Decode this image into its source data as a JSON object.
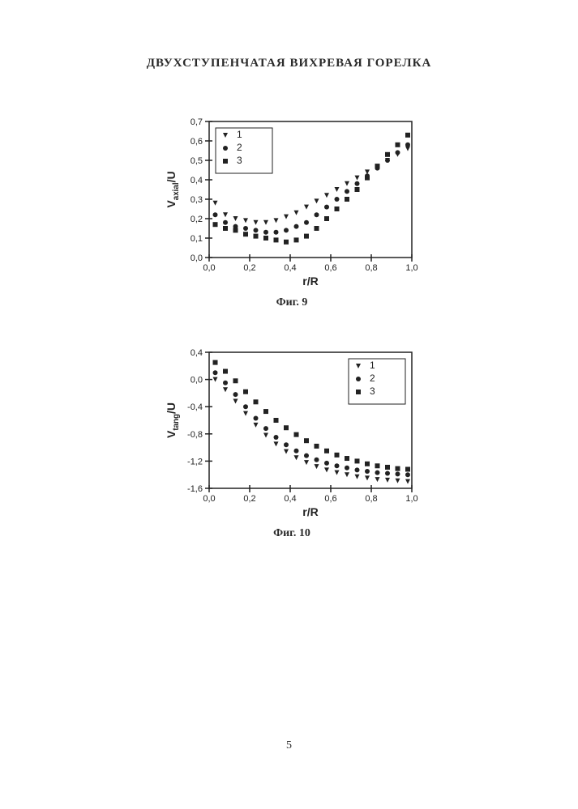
{
  "page": {
    "title": "ДВУХСТУПЕНЧАТАЯ ВИХРЕВАЯ  ГОРЕЛКА",
    "number": "5",
    "title_fontsize": 15,
    "pagenum_fontsize": 14
  },
  "fig9": {
    "caption": "Фиг. 9",
    "caption_fontsize": 14,
    "type": "scatter",
    "xlabel": "r/R",
    "ylabel": "V_axial/U",
    "label_fontsize": 14,
    "tick_fontsize": 11,
    "background_color": "#ffffff",
    "axis_color": "#222222",
    "xlim": [
      0.0,
      1.0
    ],
    "ylim": [
      0.0,
      0.7
    ],
    "xticks": [
      0.0,
      0.2,
      0.4,
      0.6,
      0.8,
      1.0
    ],
    "yticks": [
      0.0,
      0.1,
      0.2,
      0.3,
      0.4,
      0.5,
      0.6,
      0.7
    ],
    "xtick_labels": [
      "0,0",
      "0,2",
      "0,4",
      "0,6",
      "0,8",
      "1,0"
    ],
    "ytick_labels": [
      "0,0",
      "0,1",
      "0,2",
      "0,3",
      "0,4",
      "0,5",
      "0,6",
      "0,7"
    ],
    "legend": {
      "position": "top-left-inside",
      "items": [
        {
          "label": "1",
          "marker": "triangle-down",
          "color": "#222222"
        },
        {
          "label": "2",
          "marker": "circle",
          "color": "#222222"
        },
        {
          "label": "3",
          "marker": "square",
          "color": "#222222"
        }
      ]
    },
    "marker_size": 6,
    "series": [
      {
        "name": "1",
        "marker": "triangle-down",
        "color": "#222222",
        "x": [
          0.03,
          0.08,
          0.13,
          0.18,
          0.23,
          0.28,
          0.33,
          0.38,
          0.43,
          0.48,
          0.53,
          0.58,
          0.63,
          0.68,
          0.73,
          0.78,
          0.83,
          0.88,
          0.93,
          0.98
        ],
        "y": [
          0.28,
          0.22,
          0.2,
          0.19,
          0.18,
          0.18,
          0.19,
          0.21,
          0.23,
          0.26,
          0.29,
          0.32,
          0.35,
          0.38,
          0.41,
          0.44,
          0.47,
          0.5,
          0.53,
          0.56
        ]
      },
      {
        "name": "2",
        "marker": "circle",
        "color": "#222222",
        "x": [
          0.03,
          0.08,
          0.13,
          0.18,
          0.23,
          0.28,
          0.33,
          0.38,
          0.43,
          0.48,
          0.53,
          0.58,
          0.63,
          0.68,
          0.73,
          0.78,
          0.83,
          0.88,
          0.93,
          0.98
        ],
        "y": [
          0.22,
          0.18,
          0.16,
          0.15,
          0.14,
          0.13,
          0.13,
          0.14,
          0.16,
          0.18,
          0.22,
          0.26,
          0.3,
          0.34,
          0.38,
          0.42,
          0.46,
          0.5,
          0.54,
          0.58
        ]
      },
      {
        "name": "3",
        "marker": "square",
        "color": "#222222",
        "x": [
          0.03,
          0.08,
          0.13,
          0.18,
          0.23,
          0.28,
          0.33,
          0.38,
          0.43,
          0.48,
          0.53,
          0.58,
          0.63,
          0.68,
          0.73,
          0.78,
          0.83,
          0.88,
          0.93,
          0.98
        ],
        "y": [
          0.17,
          0.15,
          0.14,
          0.12,
          0.11,
          0.1,
          0.09,
          0.08,
          0.09,
          0.11,
          0.15,
          0.2,
          0.25,
          0.3,
          0.35,
          0.41,
          0.47,
          0.53,
          0.58,
          0.63
        ]
      }
    ]
  },
  "fig10": {
    "caption": "Фиг. 10",
    "caption_fontsize": 14,
    "type": "scatter",
    "xlabel": "r/R",
    "ylabel": "V_tang/U",
    "label_fontsize": 14,
    "tick_fontsize": 11,
    "background_color": "#ffffff",
    "axis_color": "#222222",
    "xlim": [
      0.0,
      1.0
    ],
    "ylim": [
      -1.6,
      0.4
    ],
    "xticks": [
      0.0,
      0.2,
      0.4,
      0.6,
      0.8,
      1.0
    ],
    "yticks": [
      -1.6,
      -1.2,
      -0.8,
      -0.4,
      0.0,
      0.4
    ],
    "xtick_labels": [
      "0,0",
      "0,2",
      "0,4",
      "0,6",
      "0,8",
      "1,0"
    ],
    "ytick_labels": [
      "-1,6",
      "-1,2",
      "-0,8",
      "-0,4",
      "0,0",
      "0,4"
    ],
    "legend": {
      "position": "top-right-inside",
      "items": [
        {
          "label": "1",
          "marker": "triangle-down",
          "color": "#222222"
        },
        {
          "label": "2",
          "marker": "circle",
          "color": "#222222"
        },
        {
          "label": "3",
          "marker": "square",
          "color": "#222222"
        }
      ]
    },
    "marker_size": 6,
    "series": [
      {
        "name": "1",
        "marker": "triangle-down",
        "color": "#222222",
        "x": [
          0.03,
          0.08,
          0.13,
          0.18,
          0.23,
          0.28,
          0.33,
          0.38,
          0.43,
          0.48,
          0.53,
          0.58,
          0.63,
          0.68,
          0.73,
          0.78,
          0.83,
          0.88,
          0.93,
          0.98
        ],
        "y": [
          0.0,
          -0.15,
          -0.32,
          -0.5,
          -0.67,
          -0.82,
          -0.95,
          -1.06,
          -1.15,
          -1.22,
          -1.28,
          -1.33,
          -1.37,
          -1.4,
          -1.43,
          -1.45,
          -1.47,
          -1.48,
          -1.49,
          -1.5
        ]
      },
      {
        "name": "2",
        "marker": "circle",
        "color": "#222222",
        "x": [
          0.03,
          0.08,
          0.13,
          0.18,
          0.23,
          0.28,
          0.33,
          0.38,
          0.43,
          0.48,
          0.53,
          0.58,
          0.63,
          0.68,
          0.73,
          0.78,
          0.83,
          0.88,
          0.93,
          0.98
        ],
        "y": [
          0.1,
          -0.05,
          -0.22,
          -0.4,
          -0.57,
          -0.72,
          -0.85,
          -0.96,
          -1.05,
          -1.12,
          -1.18,
          -1.23,
          -1.27,
          -1.3,
          -1.33,
          -1.35,
          -1.37,
          -1.38,
          -1.39,
          -1.4
        ]
      },
      {
        "name": "3",
        "marker": "square",
        "color": "#222222",
        "x": [
          0.03,
          0.08,
          0.13,
          0.18,
          0.23,
          0.28,
          0.33,
          0.38,
          0.43,
          0.48,
          0.53,
          0.58,
          0.63,
          0.68,
          0.73,
          0.78,
          0.83,
          0.88,
          0.93,
          0.98
        ],
        "y": [
          0.25,
          0.12,
          -0.02,
          -0.18,
          -0.33,
          -0.47,
          -0.6,
          -0.71,
          -0.81,
          -0.9,
          -0.98,
          -1.05,
          -1.11,
          -1.16,
          -1.2,
          -1.24,
          -1.27,
          -1.29,
          -1.31,
          -1.32
        ]
      }
    ]
  }
}
